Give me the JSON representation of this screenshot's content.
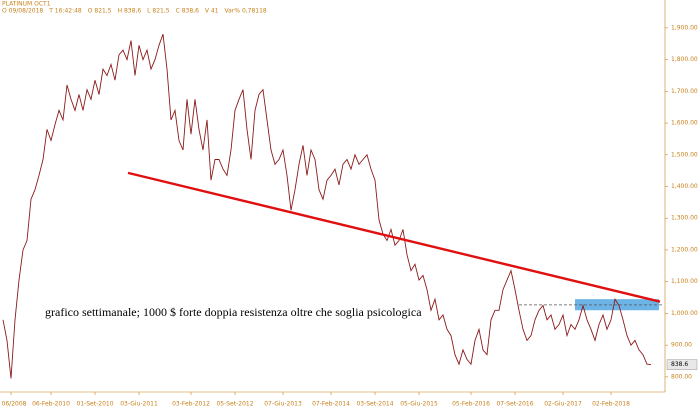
{
  "chart_data": {
    "type": "line",
    "title": "PLATINUM OCT1",
    "header": [
      "O 09/08/2018",
      "T 16:42:48",
      "O 821,5",
      "H 838,6",
      "L 821,5",
      "C 838,6",
      "V 41",
      "Var% 0,78118"
    ],
    "annotation": "grafico settimanale; 1000 $ forte doppia resistenza oltre che soglia psicologica",
    "series": [
      {
        "name": "PLATINUM OCT1",
        "color": "#8b1a1a",
        "values": [
          980,
          915,
          795,
          980,
          1105,
          1200,
          1230,
          1360,
          1390,
          1435,
          1485,
          1580,
          1545,
          1595,
          1640,
          1610,
          1720,
          1675,
          1640,
          1690,
          1640,
          1705,
          1675,
          1735,
          1690,
          1770,
          1750,
          1785,
          1735,
          1815,
          1830,
          1800,
          1860,
          1750,
          1845,
          1800,
          1830,
          1770,
          1800,
          1845,
          1880,
          1770,
          1610,
          1640,
          1545,
          1515,
          1675,
          1565,
          1675,
          1580,
          1515,
          1610,
          1420,
          1485,
          1485,
          1455,
          1435,
          1515,
          1640,
          1675,
          1705,
          1580,
          1485,
          1640,
          1690,
          1705,
          1610,
          1515,
          1470,
          1485,
          1515,
          1435,
          1325,
          1390,
          1470,
          1530,
          1435,
          1515,
          1485,
          1390,
          1360,
          1420,
          1435,
          1455,
          1405,
          1470,
          1485,
          1455,
          1500,
          1470,
          1485,
          1500,
          1455,
          1420,
          1295,
          1250,
          1230,
          1265,
          1215,
          1230,
          1265,
          1185,
          1135,
          1155,
          1105,
          1120,
          1075,
          1010,
          1045,
          980,
          995,
          950,
          930,
          870,
          840,
          885,
          855,
          840,
          915,
          950,
          885,
          870,
          980,
          1010,
          1010,
          1075,
          1105,
          1135,
          1075,
          1010,
          950,
          915,
          930,
          980,
          1010,
          1025,
          980,
          995,
          950,
          965,
          995,
          930,
          965,
          950,
          980,
          1025,
          980,
          950,
          915,
          965,
          995,
          950,
          980,
          1045,
          1025,
          980,
          930,
          900,
          915,
          885,
          870,
          840,
          838.6
        ]
      }
    ],
    "xlim": [
      0,
      165.5
    ],
    "xticks": [
      {
        "value": 2,
        "label": "06/2008"
      },
      {
        "value": 12,
        "label": "06-Feb-2010"
      },
      {
        "value": 23,
        "label": "01-Set-2010"
      },
      {
        "value": 34,
        "label": "03-Giu-2011"
      },
      {
        "value": 47,
        "label": "03-Feb-2012"
      },
      {
        "value": 58,
        "label": "05-Set-2012"
      },
      {
        "value": 70,
        "label": "07-Giu-2013"
      },
      {
        "value": 82,
        "label": "07-Feb-2014"
      },
      {
        "value": 93,
        "label": "03-Set-2014"
      },
      {
        "value": 104,
        "label": "05-Giu-2015"
      },
      {
        "value": 117,
        "label": "05-Feb-2016"
      },
      {
        "value": 128,
        "label": "07-Set-2016"
      },
      {
        "value": 140,
        "label": "02-Giu-2017"
      },
      {
        "value": 152,
        "label": "02-Feb-2018"
      }
    ],
    "ylim": [
      765,
      1950
    ],
    "yticks": [
      {
        "value": 800,
        "label": "800.00"
      },
      {
        "value": 900,
        "label": "900.00"
      },
      {
        "value": 1000,
        "label": "1,000.00"
      },
      {
        "value": 1100,
        "label": "1,100.00"
      },
      {
        "value": 1200,
        "label": "1,200.00"
      },
      {
        "value": 1300,
        "label": "1,300.00"
      },
      {
        "value": 1400,
        "label": "1,400.00"
      },
      {
        "value": 1500,
        "label": "1,500.00"
      },
      {
        "value": 1600,
        "label": "1,600.00"
      },
      {
        "value": 1700,
        "label": "1,700.00"
      },
      {
        "value": 1800,
        "label": "1,800.00"
      },
      {
        "value": 1900,
        "label": "1,900.00"
      }
    ],
    "trendline": {
      "color": "#e01010",
      "x": [
        31.25,
        164.25
      ],
      "y": [
        1443,
        1037
      ]
    },
    "zone": {
      "color": "#6cb4e6",
      "x": [
        143,
        164
      ],
      "y": [
        1010,
        1045
      ]
    },
    "level": {
      "color": "#555555",
      "x": [
        129,
        165
      ],
      "y": [
        1027,
        1027
      ]
    }
  }
}
